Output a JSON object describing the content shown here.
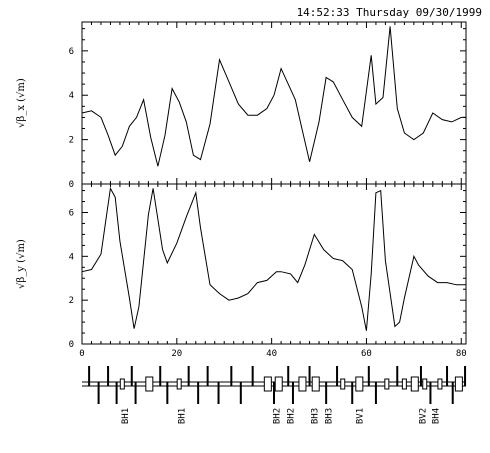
{
  "header": {
    "timestamp": "14:52:33 Thursday 09/30/1999"
  },
  "chart_data": [
    {
      "type": "line",
      "ylabel": "√β_x (√m)",
      "xlim": [
        0,
        81
      ],
      "ylim": [
        0,
        7.3
      ],
      "yticks": [
        "0",
        "2",
        "4",
        "6"
      ],
      "series": [
        {
          "x": [
            0,
            2,
            4,
            5.5,
            7,
            8.5,
            10,
            11.5,
            13,
            14.5,
            16,
            17.5,
            19,
            20.5,
            22,
            23.5,
            25,
            27,
            29,
            31,
            33,
            35,
            37,
            39,
            40.5,
            42,
            43.5,
            45,
            46.5,
            48,
            50,
            51.5,
            53,
            55,
            57,
            59,
            61,
            62,
            63.5,
            65,
            66.5,
            68,
            70,
            72,
            74,
            76,
            78,
            80,
            81
          ],
          "y": [
            3.2,
            3.3,
            3.0,
            2.2,
            1.3,
            1.7,
            2.6,
            3.0,
            3.8,
            2.1,
            0.8,
            2.2,
            4.3,
            3.7,
            2.8,
            1.3,
            1.1,
            2.7,
            5.6,
            4.6,
            3.6,
            3.1,
            3.1,
            3.4,
            4.0,
            5.2,
            4.5,
            3.8,
            2.4,
            1.0,
            2.8,
            4.8,
            4.6,
            3.8,
            3.0,
            2.6,
            5.8,
            3.6,
            3.9,
            7.1,
            3.4,
            2.3,
            2.0,
            2.3,
            3.2,
            2.9,
            2.8,
            3.0,
            3.0
          ]
        }
      ]
    },
    {
      "type": "line",
      "ylabel": "√β_y (√m)",
      "xlim": [
        0,
        81
      ],
      "ylim": [
        0,
        7.3
      ],
      "yticks": [
        "0",
        "2",
        "4",
        "6"
      ],
      "xticks": [
        "0",
        "20",
        "40",
        "60",
        "80"
      ],
      "series": [
        {
          "x": [
            0,
            2,
            4,
            6,
            7,
            8,
            10,
            11,
            12,
            14,
            15,
            17,
            18,
            20,
            22,
            24,
            25,
            27,
            29,
            31,
            33,
            35,
            37,
            39,
            41,
            42,
            44,
            45.5,
            47,
            49,
            51,
            53,
            55,
            57,
            59,
            60,
            61,
            62,
            63,
            64,
            66,
            67,
            68,
            70,
            71,
            73,
            75,
            77,
            79,
            81
          ],
          "y": [
            3.3,
            3.4,
            4.1,
            7.1,
            6.7,
            4.7,
            2.1,
            0.7,
            1.7,
            5.9,
            7.1,
            4.3,
            3.7,
            4.6,
            5.8,
            6.9,
            5.3,
            2.7,
            2.3,
            2.0,
            2.1,
            2.3,
            2.8,
            2.9,
            3.3,
            3.3,
            3.2,
            2.8,
            3.6,
            5.0,
            4.3,
            3.9,
            3.8,
            3.4,
            1.7,
            0.6,
            3.2,
            6.9,
            7.0,
            3.8,
            0.8,
            1.0,
            2.1,
            4.0,
            3.6,
            3.1,
            2.8,
            2.8,
            2.7,
            2.7
          ]
        }
      ]
    }
  ],
  "lattice": {
    "elements": [
      {
        "s": 1.5,
        "kind": "quad-up"
      },
      {
        "s": 3.5,
        "kind": "quad-down"
      },
      {
        "s": 5.5,
        "kind": "quad-up"
      },
      {
        "s": 7.3,
        "kind": "quad-down"
      },
      {
        "s": 8.5,
        "kind": "bend-small"
      },
      {
        "s": 10.5,
        "kind": "quad-up"
      },
      {
        "s": 11.3,
        "kind": "quad-down"
      },
      {
        "s": 14.2,
        "kind": "bend"
      },
      {
        "s": 16.5,
        "kind": "quad-up"
      },
      {
        "s": 18.0,
        "kind": "quad-down"
      },
      {
        "s": 20.5,
        "kind": "bend-small"
      },
      {
        "s": 22.5,
        "kind": "quad-up"
      },
      {
        "s": 24.5,
        "kind": "quad-down"
      },
      {
        "s": 26.5,
        "kind": "quad-up"
      },
      {
        "s": 28.8,
        "kind": "quad-down"
      },
      {
        "s": 31.5,
        "kind": "quad-up"
      },
      {
        "s": 33.5,
        "kind": "quad-down"
      },
      {
        "s": 36.0,
        "kind": "quad-up"
      },
      {
        "s": 39.2,
        "kind": "bend"
      },
      {
        "s": 40.5,
        "kind": "quad-down"
      },
      {
        "s": 41.5,
        "kind": "bend"
      },
      {
        "s": 43.5,
        "kind": "quad-up"
      },
      {
        "s": 44.5,
        "kind": "quad-down"
      },
      {
        "s": 46.5,
        "kind": "bend"
      },
      {
        "s": 48.0,
        "kind": "quad-up"
      },
      {
        "s": 49.3,
        "kind": "bend"
      },
      {
        "s": 51.5,
        "kind": "quad-down"
      },
      {
        "s": 53.8,
        "kind": "quad-up"
      },
      {
        "s": 55.0,
        "kind": "bend-small"
      },
      {
        "s": 57.0,
        "kind": "quad-down"
      },
      {
        "s": 58.5,
        "kind": "bend"
      },
      {
        "s": 60.5,
        "kind": "quad-up"
      },
      {
        "s": 62.0,
        "kind": "quad-down"
      },
      {
        "s": 64.3,
        "kind": "bend-small"
      },
      {
        "s": 66.5,
        "kind": "quad-up"
      },
      {
        "s": 68.0,
        "kind": "bend-small"
      },
      {
        "s": 70.2,
        "kind": "bend"
      },
      {
        "s": 71.5,
        "kind": "quad-up"
      },
      {
        "s": 72.3,
        "kind": "bend-small"
      },
      {
        "s": 73.5,
        "kind": "quad-down"
      },
      {
        "s": 75.5,
        "kind": "bend-small"
      },
      {
        "s": 77.0,
        "kind": "quad-up"
      },
      {
        "s": 78.2,
        "kind": "quad-down"
      },
      {
        "s": 79.5,
        "kind": "bend"
      },
      {
        "s": 80.8,
        "kind": "quad-up"
      }
    ],
    "labels": [
      {
        "s": 8.5,
        "text": "BH1"
      },
      {
        "s": 20.5,
        "text": "BH1"
      },
      {
        "s": 40.5,
        "text": "BH2"
      },
      {
        "s": 43.5,
        "text": "BH2"
      },
      {
        "s": 48.5,
        "text": "BH3"
      },
      {
        "s": 51.5,
        "text": "BH3"
      },
      {
        "s": 58.0,
        "text": "BV1"
      },
      {
        "s": 71.3,
        "text": "BV2"
      },
      {
        "s": 74.0,
        "text": "BH4"
      }
    ]
  }
}
